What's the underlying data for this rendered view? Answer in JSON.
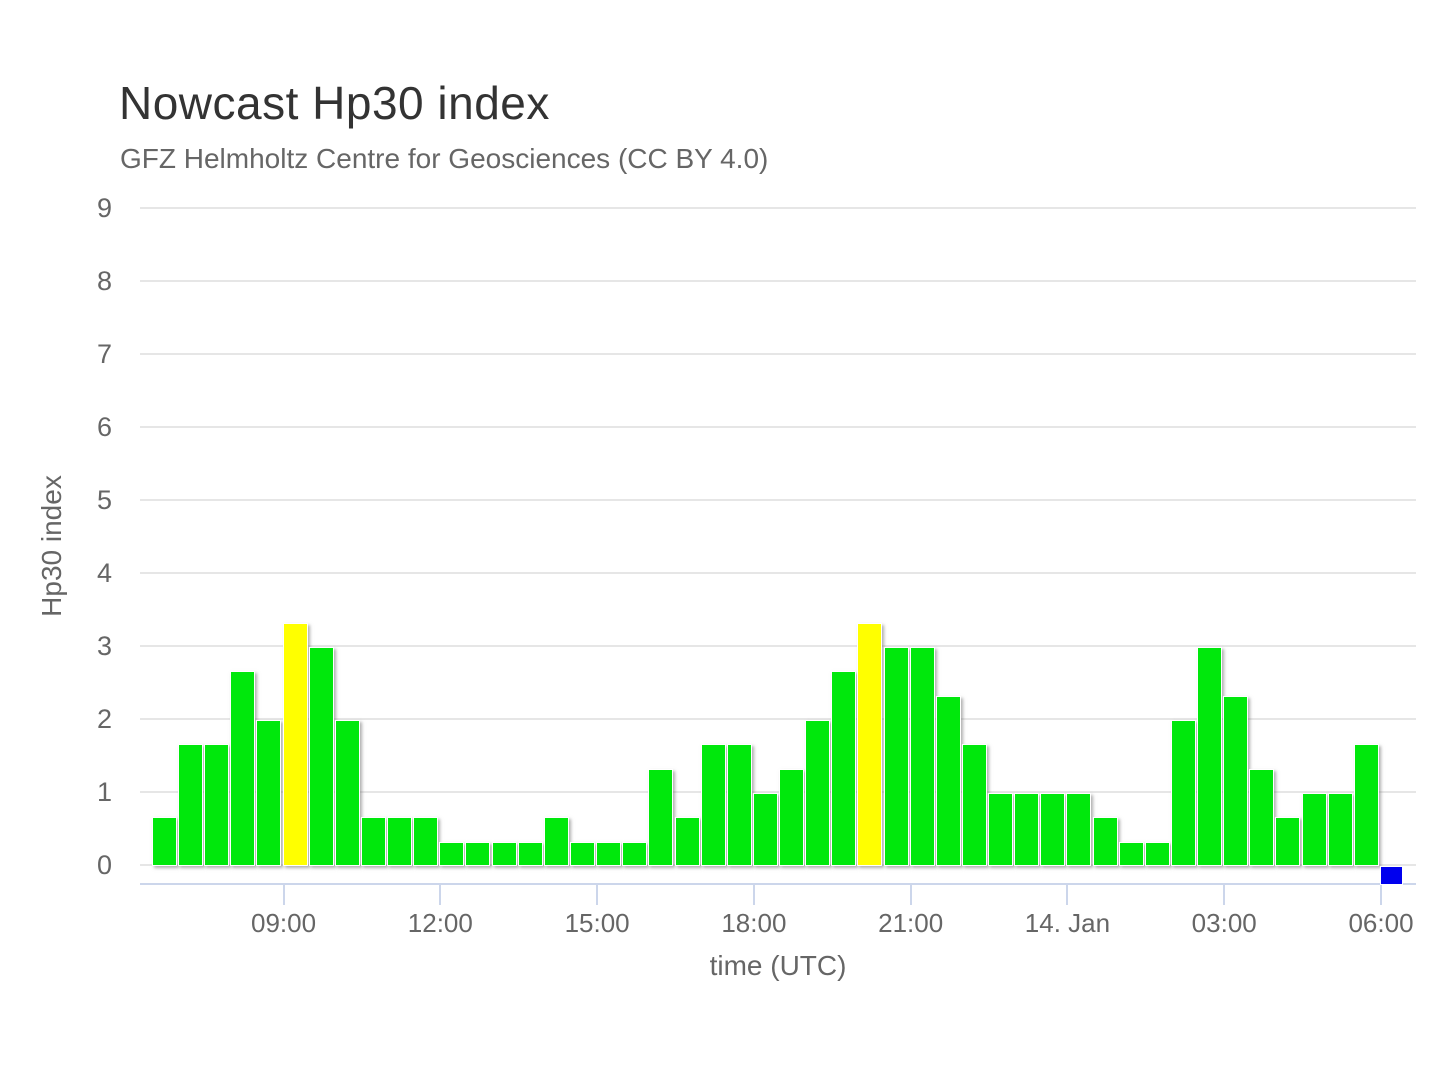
{
  "chart_data": {
    "type": "bar",
    "title": "Nowcast Hp30 index",
    "subtitle": "GFZ Helmholtz Centre for Geosciences (CC BY 4.0)",
    "xlabel": "time (UTC)",
    "ylabel": "Hp30 index",
    "ylim": [
      0,
      9
    ],
    "y_ticks": [
      0,
      1,
      2,
      3,
      4,
      5,
      6,
      7,
      8,
      9
    ],
    "grid": "horizontal",
    "legend": "none",
    "cadence_minutes": 30,
    "colors": {
      "green": "#00E80C",
      "yellow": "#FFFF00",
      "blue": "#0000EE",
      "gridline": "#e6e6e6",
      "axis_line": "#ccd6eb",
      "title_text": "#333333",
      "label_text": "#666666"
    },
    "x_ticks": [
      {
        "label": "09:00",
        "slot": 5
      },
      {
        "label": "12:00",
        "slot": 11
      },
      {
        "label": "15:00",
        "slot": 17
      },
      {
        "label": "18:00",
        "slot": 23
      },
      {
        "label": "21:00",
        "slot": 29
      },
      {
        "label": "14. Jan",
        "slot": 35
      },
      {
        "label": "03:00",
        "slot": 41
      },
      {
        "label": "06:00",
        "slot": 47
      }
    ],
    "points": [
      {
        "time": "06:30",
        "value": 0.67,
        "color": "green"
      },
      {
        "time": "07:00",
        "value": 1.67,
        "color": "green"
      },
      {
        "time": "07:30",
        "value": 1.67,
        "color": "green"
      },
      {
        "time": "08:00",
        "value": 2.67,
        "color": "green"
      },
      {
        "time": "08:30",
        "value": 2.0,
        "color": "green"
      },
      {
        "time": "09:00",
        "value": 3.33,
        "color": "yellow"
      },
      {
        "time": "09:30",
        "value": 3.0,
        "color": "green"
      },
      {
        "time": "10:00",
        "value": 2.0,
        "color": "green"
      },
      {
        "time": "10:30",
        "value": 0.67,
        "color": "green"
      },
      {
        "time": "11:00",
        "value": 0.67,
        "color": "green"
      },
      {
        "time": "11:30",
        "value": 0.67,
        "color": "green"
      },
      {
        "time": "12:00",
        "value": 0.33,
        "color": "green"
      },
      {
        "time": "12:30",
        "value": 0.33,
        "color": "green"
      },
      {
        "time": "13:00",
        "value": 0.33,
        "color": "green"
      },
      {
        "time": "13:30",
        "value": 0.33,
        "color": "green"
      },
      {
        "time": "14:00",
        "value": 0.67,
        "color": "green"
      },
      {
        "time": "14:30",
        "value": 0.33,
        "color": "green"
      },
      {
        "time": "15:00",
        "value": 0.33,
        "color": "green"
      },
      {
        "time": "15:30",
        "value": 0.33,
        "color": "green"
      },
      {
        "time": "16:00",
        "value": 1.33,
        "color": "green"
      },
      {
        "time": "16:30",
        "value": 0.67,
        "color": "green"
      },
      {
        "time": "17:00",
        "value": 1.67,
        "color": "green"
      },
      {
        "time": "17:30",
        "value": 1.67,
        "color": "green"
      },
      {
        "time": "18:00",
        "value": 1.0,
        "color": "green"
      },
      {
        "time": "18:30",
        "value": 1.33,
        "color": "green"
      },
      {
        "time": "19:00",
        "value": 2.0,
        "color": "green"
      },
      {
        "time": "19:30",
        "value": 2.67,
        "color": "green"
      },
      {
        "time": "20:00",
        "value": 3.33,
        "color": "yellow"
      },
      {
        "time": "20:30",
        "value": 3.0,
        "color": "green"
      },
      {
        "time": "21:00",
        "value": 3.0,
        "color": "green"
      },
      {
        "time": "21:30",
        "value": 2.33,
        "color": "green"
      },
      {
        "time": "22:00",
        "value": 1.67,
        "color": "green"
      },
      {
        "time": "22:30",
        "value": 1.0,
        "color": "green"
      },
      {
        "time": "23:00",
        "value": 1.0,
        "color": "green"
      },
      {
        "time": "23:30",
        "value": 1.0,
        "color": "green"
      },
      {
        "time": "00:00",
        "value": 1.0,
        "color": "green"
      },
      {
        "time": "00:30",
        "value": 0.67,
        "color": "green"
      },
      {
        "time": "01:00",
        "value": 0.33,
        "color": "green"
      },
      {
        "time": "01:30",
        "value": 0.33,
        "color": "green"
      },
      {
        "time": "02:00",
        "value": 2.0,
        "color": "green"
      },
      {
        "time": "02:30",
        "value": 3.0,
        "color": "green"
      },
      {
        "time": "03:00",
        "value": 2.33,
        "color": "green"
      },
      {
        "time": "03:30",
        "value": 1.33,
        "color": "green"
      },
      {
        "time": "04:00",
        "value": 0.67,
        "color": "green"
      },
      {
        "time": "04:30",
        "value": 1.0,
        "color": "green"
      },
      {
        "time": "05:00",
        "value": 1.0,
        "color": "green"
      },
      {
        "time": "05:30",
        "value": 1.67,
        "color": "green"
      },
      {
        "time": "06:00",
        "value": 0.0,
        "color": "blue",
        "below_axis_marker": true
      }
    ]
  }
}
